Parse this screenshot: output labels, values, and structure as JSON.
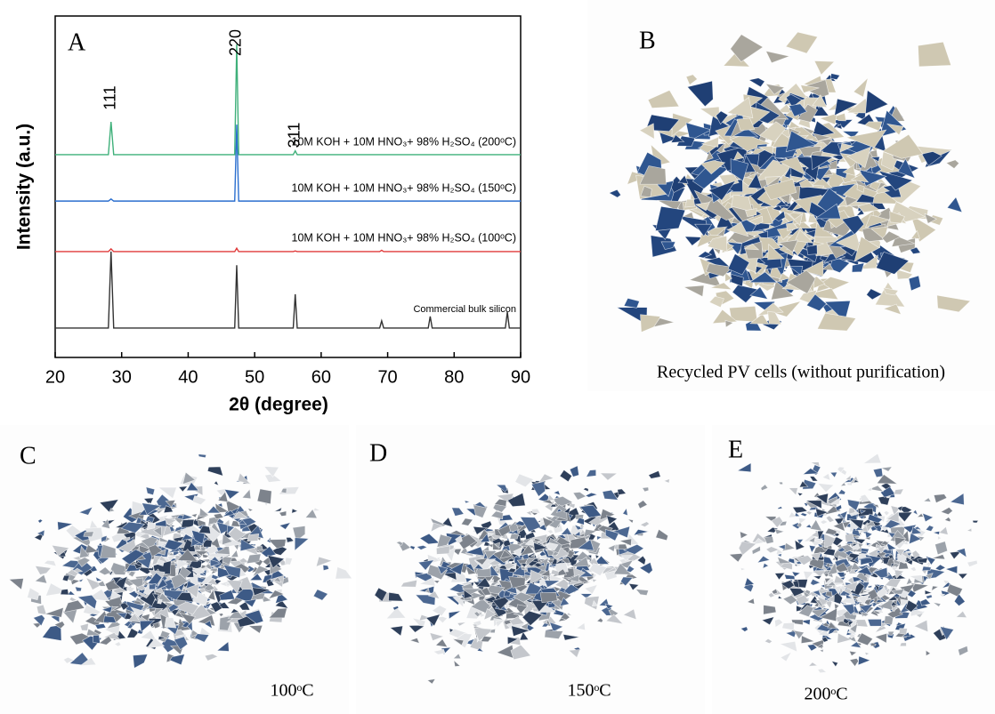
{
  "chart_data": {
    "type": "line",
    "title": "A",
    "x_label": "2θ (degree)",
    "y_label": "Intensity (a.u.)",
    "x": [
      20,
      28.0,
      28.4,
      28.8,
      47.0,
      47.3,
      47.6,
      55.8,
      56.1,
      56.4,
      68.8,
      69.1,
      69.4,
      76.1,
      76.4,
      76.7,
      87.7,
      88.0,
      88.3,
      90
    ],
    "series": [
      {
        "name": "Commercial bulk silicon",
        "color": "#333333",
        "values": [
          8.6,
          8.6,
          31,
          8.6,
          8.6,
          27,
          8.6,
          8.6,
          18.5,
          8.6,
          8.6,
          10.7,
          8.6,
          8.6,
          12,
          8.6,
          8.6,
          13.3,
          8.6,
          8.6
        ]
      },
      {
        "name": "10M KOH + 10M HNO₃+ 98% H₂SO₄ (100ᵒC)",
        "color": "#e03a3a",
        "values": [
          31,
          31,
          31.8,
          31,
          31,
          32,
          31,
          31,
          31.2,
          31,
          31,
          31.4,
          31,
          31,
          31,
          31,
          31,
          31,
          31,
          31
        ]
      },
      {
        "name": "10M KOH + 10M HNO₃+ 98% H₂SO₄ (150ᵒC)",
        "color": "#2b6fcf",
        "values": [
          45.8,
          45.8,
          46.4,
          45.8,
          45.8,
          68.2,
          45.8,
          45.8,
          45.8,
          45.8,
          45.8,
          45.8,
          45.8,
          45.8,
          45.8,
          45.8,
          45.8,
          45.8,
          45.8,
          45.8
        ]
      },
      {
        "name": "10M KOH + 10M HNO₃+ 98% H₂SO₄ (200ᵒC)",
        "color": "#3fb07a",
        "values": [
          59.4,
          59.4,
          69,
          59.4,
          59.4,
          91.7,
          59.4,
          59.4,
          60.5,
          59.4,
          59.4,
          59.4,
          59.4,
          59.4,
          59.4,
          59.4,
          59.4,
          59.4,
          59.4,
          59.4
        ]
      }
    ],
    "annotations": [
      "111",
      "220",
      "311"
    ],
    "xlim": [
      20,
      90
    ],
    "xticks": [
      20,
      30,
      40,
      50,
      60,
      70,
      80,
      90
    ],
    "ylim": [
      0,
      100
    ]
  },
  "photos": [
    {
      "label": "B",
      "caption": "Recycled PV cells (without purification)"
    },
    {
      "label": "C",
      "caption": "100ᵒC"
    },
    {
      "label": "D",
      "caption": "150ᵒC"
    },
    {
      "label": "E",
      "caption": "200ᵒC"
    }
  ]
}
